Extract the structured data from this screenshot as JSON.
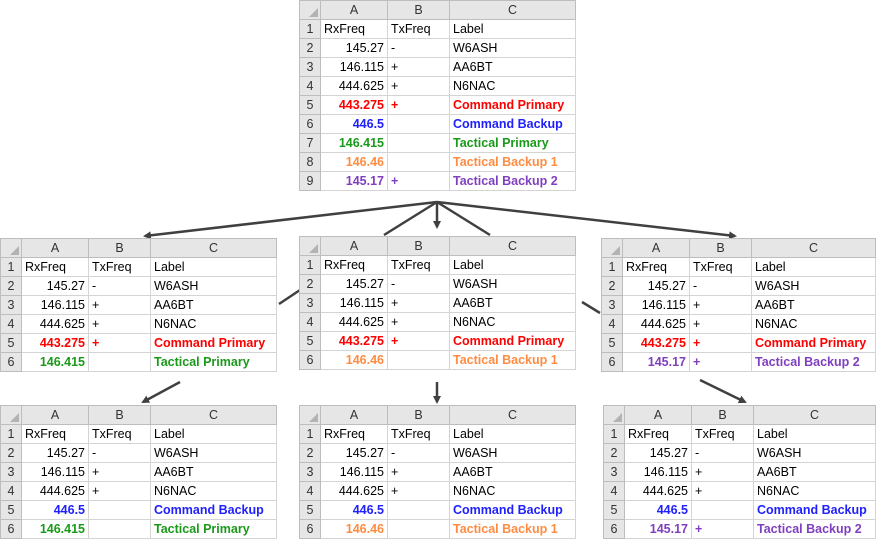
{
  "col_headers": [
    "A",
    "B",
    "C"
  ],
  "colors": {
    "red": "#ff0000",
    "blue": "#2020ff",
    "green": "#1a9a1a",
    "orange": "#ff8c42",
    "purple": "#7f3fbf",
    "arrow": "#404040"
  },
  "sheets": {
    "master": {
      "rows": [
        {
          "n": "1",
          "rx": "RxFreq",
          "tx": "TxFreq",
          "label": "Label",
          "style": "header"
        },
        {
          "n": "2",
          "rx": "145.27",
          "tx": "-",
          "label": "W6ASH",
          "style": "plain"
        },
        {
          "n": "3",
          "rx": "146.115",
          "tx": "+",
          "label": "AA6BT",
          "style": "plain"
        },
        {
          "n": "4",
          "rx": "444.625",
          "tx": "+",
          "label": "N6NAC",
          "style": "plain"
        },
        {
          "n": "5",
          "rx": "443.275",
          "tx": "+",
          "label": "Command Primary",
          "style": "red"
        },
        {
          "n": "6",
          "rx": "446.5",
          "tx": "",
          "label": "Command Backup",
          "style": "blue"
        },
        {
          "n": "7",
          "rx": "146.415",
          "tx": "",
          "label": "Tactical Primary",
          "style": "green"
        },
        {
          "n": "8",
          "rx": "146.46",
          "tx": "",
          "label": "Tactical Backup 1",
          "style": "orange"
        },
        {
          "n": "9",
          "rx": "145.17",
          "tx": "+",
          "label": "Tactical Backup 2",
          "style": "purple"
        }
      ]
    },
    "mid_left": {
      "rows": [
        {
          "n": "1",
          "rx": "RxFreq",
          "tx": "TxFreq",
          "label": "Label",
          "style": "header"
        },
        {
          "n": "2",
          "rx": "145.27",
          "tx": "-",
          "label": "W6ASH",
          "style": "plain"
        },
        {
          "n": "3",
          "rx": "146.115",
          "tx": "+",
          "label": "AA6BT",
          "style": "plain"
        },
        {
          "n": "4",
          "rx": "444.625",
          "tx": "+",
          "label": "N6NAC",
          "style": "plain"
        },
        {
          "n": "5",
          "rx": "443.275",
          "tx": "+",
          "label": "Command Primary",
          "style": "red"
        },
        {
          "n": "6",
          "rx": "146.415",
          "tx": "",
          "label": "Tactical Primary",
          "style": "green"
        }
      ]
    },
    "mid_center": {
      "rows": [
        {
          "n": "1",
          "rx": "RxFreq",
          "tx": "TxFreq",
          "label": "Label",
          "style": "header"
        },
        {
          "n": "2",
          "rx": "145.27",
          "tx": "-",
          "label": "W6ASH",
          "style": "plain"
        },
        {
          "n": "3",
          "rx": "146.115",
          "tx": "+",
          "label": "AA6BT",
          "style": "plain"
        },
        {
          "n": "4",
          "rx": "444.625",
          "tx": "+",
          "label": "N6NAC",
          "style": "plain"
        },
        {
          "n": "5",
          "rx": "443.275",
          "tx": "+",
          "label": "Command Primary",
          "style": "red"
        },
        {
          "n": "6",
          "rx": "146.46",
          "tx": "",
          "label": "Tactical Backup 1",
          "style": "orange"
        }
      ]
    },
    "mid_right": {
      "rows": [
        {
          "n": "1",
          "rx": "RxFreq",
          "tx": "TxFreq",
          "label": "Label",
          "style": "header"
        },
        {
          "n": "2",
          "rx": "145.27",
          "tx": "-",
          "label": "W6ASH",
          "style": "plain"
        },
        {
          "n": "3",
          "rx": "146.115",
          "tx": "+",
          "label": "AA6BT",
          "style": "plain"
        },
        {
          "n": "4",
          "rx": "444.625",
          "tx": "+",
          "label": "N6NAC",
          "style": "plain"
        },
        {
          "n": "5",
          "rx": "443.275",
          "tx": "+",
          "label": "Command Primary",
          "style": "red"
        },
        {
          "n": "6",
          "rx": "145.17",
          "tx": "+",
          "label": "Tactical Backup 2",
          "style": "purple"
        }
      ]
    },
    "bot_left": {
      "rows": [
        {
          "n": "1",
          "rx": "RxFreq",
          "tx": "TxFreq",
          "label": "Label",
          "style": "header"
        },
        {
          "n": "2",
          "rx": "145.27",
          "tx": "-",
          "label": "W6ASH",
          "style": "plain"
        },
        {
          "n": "3",
          "rx": "146.115",
          "tx": "+",
          "label": "AA6BT",
          "style": "plain"
        },
        {
          "n": "4",
          "rx": "444.625",
          "tx": "+",
          "label": "N6NAC",
          "style": "plain"
        },
        {
          "n": "5",
          "rx": "446.5",
          "tx": "",
          "label": "Command Backup",
          "style": "blue"
        },
        {
          "n": "6",
          "rx": "146.415",
          "tx": "",
          "label": "Tactical Primary",
          "style": "green"
        }
      ]
    },
    "bot_center": {
      "rows": [
        {
          "n": "1",
          "rx": "RxFreq",
          "tx": "TxFreq",
          "label": "Label",
          "style": "header"
        },
        {
          "n": "2",
          "rx": "145.27",
          "tx": "-",
          "label": "W6ASH",
          "style": "plain"
        },
        {
          "n": "3",
          "rx": "146.115",
          "tx": "+",
          "label": "AA6BT",
          "style": "plain"
        },
        {
          "n": "4",
          "rx": "444.625",
          "tx": "+",
          "label": "N6NAC",
          "style": "plain"
        },
        {
          "n": "5",
          "rx": "446.5",
          "tx": "",
          "label": "Command Backup",
          "style": "blue"
        },
        {
          "n": "6",
          "rx": "146.46",
          "tx": "",
          "label": "Tactical Backup 1",
          "style": "orange"
        }
      ]
    },
    "bot_right": {
      "rows": [
        {
          "n": "1",
          "rx": "RxFreq",
          "tx": "TxFreq",
          "label": "Label",
          "style": "header"
        },
        {
          "n": "2",
          "rx": "145.27",
          "tx": "-",
          "label": "W6ASH",
          "style": "plain"
        },
        {
          "n": "3",
          "rx": "146.115",
          "tx": "+",
          "label": "AA6BT",
          "style": "plain"
        },
        {
          "n": "4",
          "rx": "444.625",
          "tx": "+",
          "label": "N6NAC",
          "style": "plain"
        },
        {
          "n": "5",
          "rx": "446.5",
          "tx": "",
          "label": "Command Backup",
          "style": "blue"
        },
        {
          "n": "6",
          "rx": "145.17",
          "tx": "+",
          "label": "Tactical Backup 2",
          "style": "purple"
        }
      ]
    }
  }
}
